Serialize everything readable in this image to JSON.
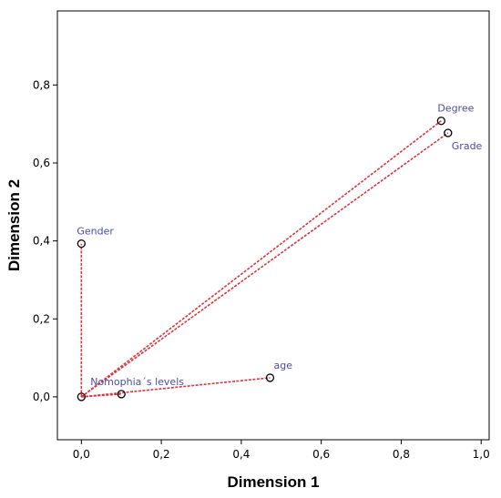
{
  "chart_data": {
    "type": "scatter",
    "title": "",
    "xlabel": "Dimension 1",
    "ylabel": "Dimension 2",
    "xlim": [
      -0.06,
      1.02
    ],
    "ylim": [
      -0.11,
      0.99
    ],
    "xticks": [
      0.0,
      0.2,
      0.4,
      0.6,
      0.8,
      1.0
    ],
    "xtick_labels": [
      "0,0",
      "0,2",
      "0,4",
      "0,6",
      "0,8",
      "1,0"
    ],
    "yticks": [
      0.0,
      0.2,
      0.4,
      0.6,
      0.8
    ],
    "ytick_labels": [
      "0,0",
      "0,2",
      "0,4",
      "0,6",
      "0,8"
    ],
    "grid": false,
    "origin": [
      0.0,
      0.0
    ],
    "points": [
      {
        "label": "Gender",
        "x": 0.0,
        "y": 0.393
      },
      {
        "label": "Nomophia´s levels",
        "x": 0.1,
        "y": 0.007
      },
      {
        "label": "age",
        "x": 0.472,
        "y": 0.049
      },
      {
        "label": "Degree",
        "x": 0.9,
        "y": 0.708
      },
      {
        "label": "Grade",
        "x": 0.917,
        "y": 0.677
      }
    ],
    "colors": {
      "point_label": "#4b4bab",
      "vector_line": "#d9363e",
      "marker_stroke": "#000000",
      "axis": "#000000"
    }
  }
}
